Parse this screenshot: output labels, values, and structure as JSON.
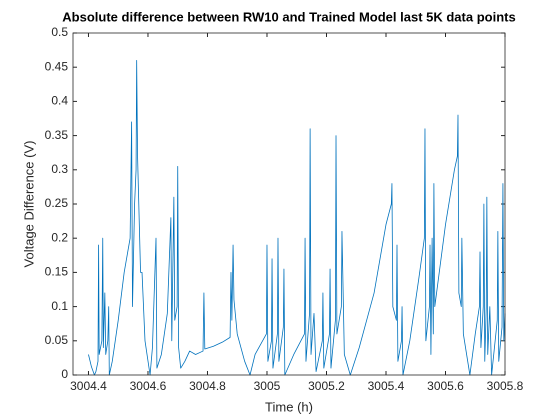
{
  "chart_data": {
    "type": "line",
    "title": "Absolute difference between RW10 and Trained Model last 5K data points",
    "xlabel": "Time (h)",
    "ylabel": "Voltage Difference (V)",
    "xlim": [
      3004.348,
      3005.8
    ],
    "ylim": [
      0,
      0.5
    ],
    "xticks": [
      3004.4,
      3004.6,
      3004.8,
      3005,
      3005.2,
      3005.4,
      3005.6,
      3005.8
    ],
    "yticks": [
      0,
      0.05,
      0.1,
      0.15,
      0.2,
      0.25,
      0.3,
      0.35,
      0.4,
      0.45,
      0.5
    ],
    "grid": false,
    "x": [
      3004.4,
      3004.41,
      3004.42,
      3004.425,
      3004.432,
      3004.434,
      3004.436,
      3004.445,
      3004.448,
      3004.45,
      3004.455,
      3004.458,
      3004.465,
      3004.468,
      3004.47,
      3004.48,
      3004.5,
      3004.52,
      3004.54,
      3004.545,
      3004.548,
      3004.555,
      3004.56,
      3004.562,
      3004.565,
      3004.575,
      3004.58,
      3004.59,
      3004.607,
      3004.615,
      3004.627,
      3004.63,
      3004.645,
      3004.665,
      3004.677,
      3004.68,
      3004.687,
      3004.69,
      3004.698,
      3004.7,
      3004.703,
      3004.71,
      3004.724,
      3004.74,
      3004.76,
      3004.785,
      3004.788,
      3004.791,
      3004.82,
      3004.85,
      3004.876,
      3004.879,
      3004.882,
      3004.886,
      3004.889,
      3004.9,
      3004.925,
      3004.943,
      3004.96,
      3004.998,
      3005.0,
      3005.003,
      3005.015,
      3005.017,
      3005.02,
      3005.035,
      3005.037,
      3005.04,
      3005.055,
      3005.057,
      3005.06,
      3005.09,
      3005.126,
      3005.128,
      3005.131,
      3005.143,
      3005.145,
      3005.148,
      3005.158,
      3005.165,
      3005.186,
      3005.188,
      3005.191,
      3005.21,
      3005.212,
      3005.215,
      3005.23,
      3005.232,
      3005.235,
      3005.25,
      3005.252,
      3005.26,
      3005.28,
      3005.31,
      3005.36,
      3005.4,
      3005.418,
      3005.42,
      3005.423,
      3005.435,
      3005.437,
      3005.44,
      3005.452,
      3005.454,
      3005.457,
      3005.48,
      3005.51,
      3005.529,
      3005.531,
      3005.534,
      3005.546,
      3005.548,
      3005.551,
      3005.555,
      3005.559,
      3005.561,
      3005.564,
      3005.6,
      3005.63,
      3005.64,
      3005.642,
      3005.645,
      3005.653,
      3005.655,
      3005.66,
      3005.682,
      3005.7,
      3005.714,
      3005.716,
      3005.719,
      3005.727,
      3005.729,
      3005.732,
      3005.737,
      3005.739,
      3005.742,
      3005.749,
      3005.755,
      3005.774,
      3005.776,
      3005.779,
      3005.79,
      3005.793,
      3005.796,
      3005.8
    ],
    "series": [
      {
        "color": "#0072bd",
        "values": [
          0.03,
          0.012,
          0,
          0.005,
          0.02,
          0.19,
          0.03,
          0.05,
          0.2,
          0.04,
          0.12,
          0.03,
          0.05,
          0.1,
          0,
          0.02,
          0.08,
          0.15,
          0.2,
          0.37,
          0.1,
          0.25,
          0.3,
          0.46,
          0.32,
          0.15,
          0.15,
          0.05,
          0,
          0.04,
          0.2,
          0.01,
          0.03,
          0.09,
          0.23,
          0.05,
          0.26,
          0.08,
          0.1,
          0.305,
          0.04,
          0.01,
          0.02,
          0.035,
          0.03,
          0.035,
          0.12,
          0.038,
          0.042,
          0.048,
          0.055,
          0.15,
          0.08,
          0.19,
          0.11,
          0.06,
          0.02,
          0,
          0.03,
          0.06,
          0.19,
          0.02,
          0.05,
          0.17,
          0.01,
          0.06,
          0.2,
          0.02,
          0.07,
          0.155,
          0,
          0.03,
          0.06,
          0.2,
          0.02,
          0.09,
          0.36,
          0.03,
          0.09,
          0.005,
          0.05,
          0.12,
          0.01,
          0.06,
          0.155,
          0.01,
          0.08,
          0.35,
          0.06,
          0.1,
          0.21,
          0.03,
          0,
          0.04,
          0.12,
          0.22,
          0.25,
          0.28,
          0.1,
          0.08,
          0.19,
          0.02,
          0.05,
          0.1,
          0,
          0.05,
          0.14,
          0.2,
          0.36,
          0.05,
          0.1,
          0.19,
          0.03,
          0.2,
          0.06,
          0.28,
          0.1,
          0.22,
          0.3,
          0.32,
          0.38,
          0.12,
          0.1,
          0.2,
          0.06,
          0,
          0.06,
          0.1,
          0.18,
          0.04,
          0.1,
          0.25,
          0.02,
          0.1,
          0.26,
          0.03,
          0.1,
          0,
          0.08,
          0.21,
          0.02,
          0.07,
          0.28,
          0.05,
          0.09
        ]
      }
    ]
  }
}
